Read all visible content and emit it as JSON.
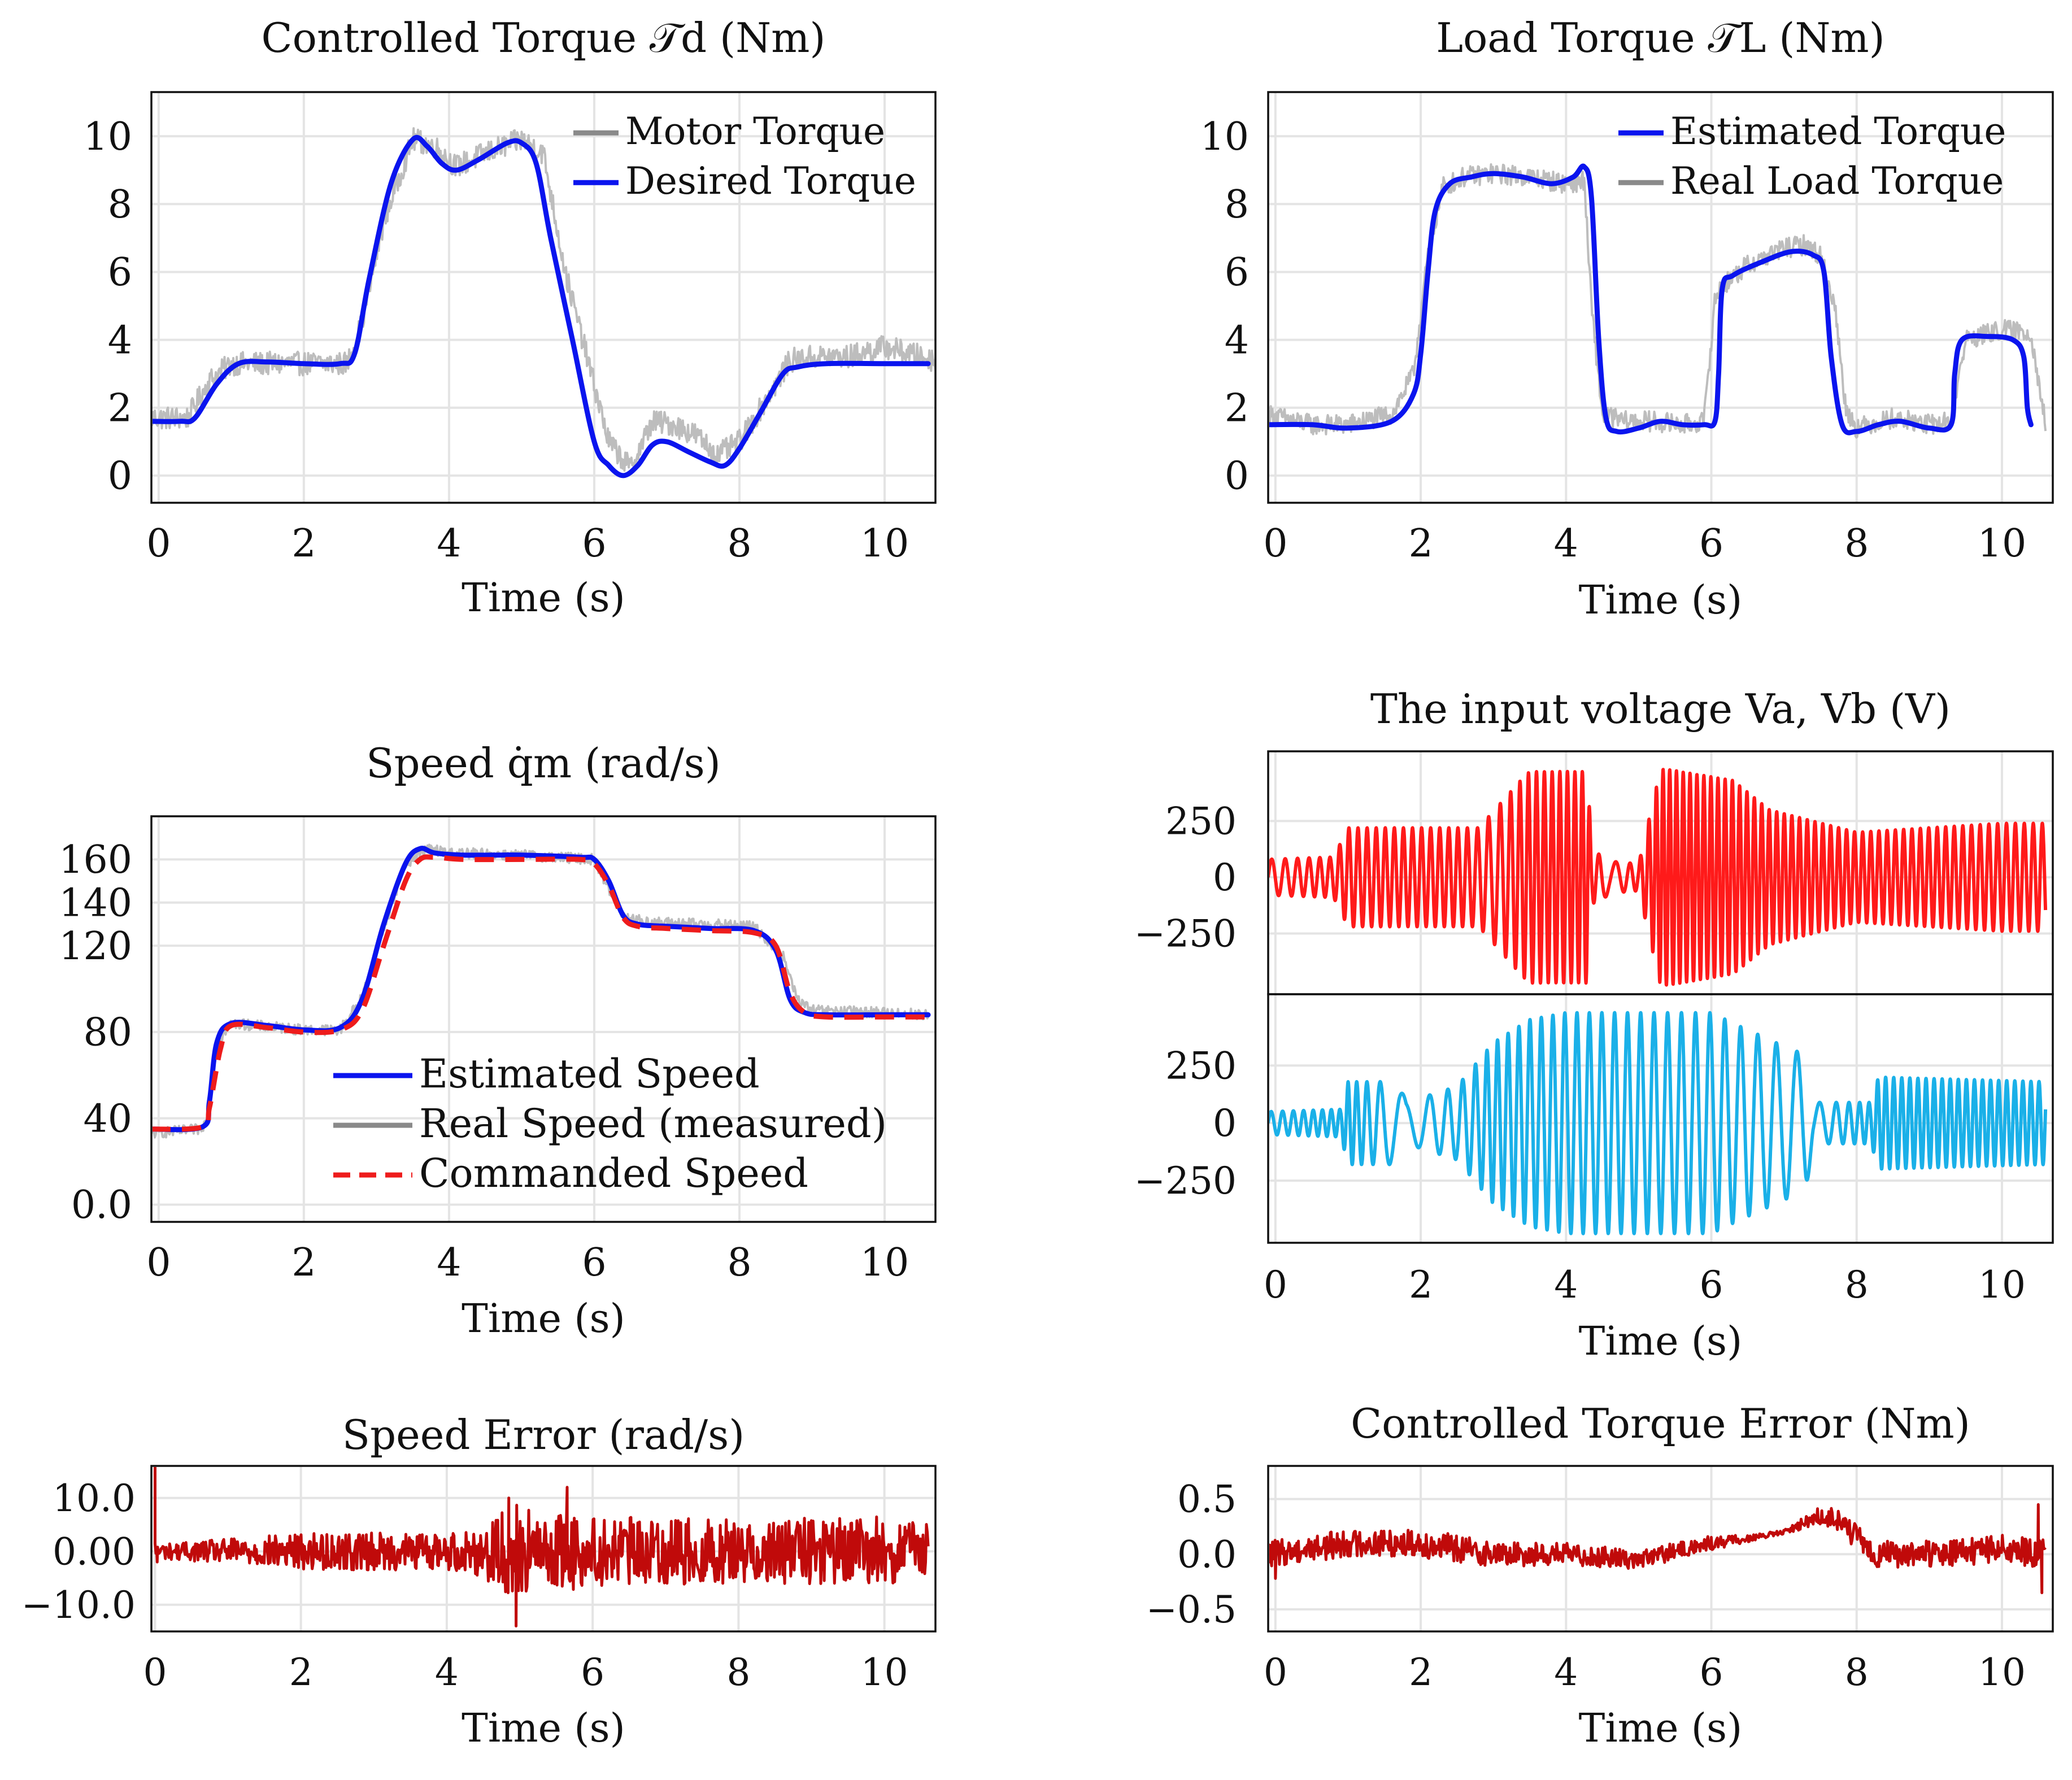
{
  "figure": {
    "colors": {
      "blue": "#0a14ee",
      "gray": "#bdbdbd",
      "gray_legend": "#8a8a8a",
      "red": "#ff1a1a",
      "red_dashed": "#ee1c1c",
      "cyan": "#1ab0e8",
      "dark_red": "#c00a0a",
      "grid": "#e4e4e4",
      "axis": "#111111"
    }
  },
  "chart_data": [
    {
      "id": "controlled-torque",
      "type": "line",
      "title": "Controlled Torque 𝒯d (Nm)",
      "xlabel": "Time (s)",
      "ylabel": "",
      "xlim": [
        -0.1,
        10.7
      ],
      "ylim": [
        -0.8,
        11.3
      ],
      "xticks": [
        0,
        2,
        4,
        6,
        8,
        10
      ],
      "xtick_labels": [
        "0",
        "2",
        "4",
        "6",
        "8",
        "10"
      ],
      "yticks": [
        0,
        2,
        4,
        6,
        8,
        10
      ],
      "ytick_labels": [
        "0",
        "2",
        "4",
        "6",
        "8",
        "10"
      ],
      "grid": true,
      "legend_position": "top-right",
      "series": [
        {
          "name": "Motor Torque",
          "style": "noisy",
          "color": "#bdbdbd",
          "noise": 0.35,
          "x": [
            -0.1,
            0.4,
            0.7,
            1.0,
            1.5,
            2.0,
            2.6,
            2.8,
            3.1,
            3.5,
            3.8,
            4.1,
            4.5,
            5.0,
            5.3,
            5.6,
            5.9,
            6.2,
            6.5,
            6.8,
            7.1,
            7.4,
            7.7,
            8.0,
            8.3,
            8.7,
            9.0,
            9.5,
            10.0,
            10.7
          ],
          "y": [
            1.7,
            1.7,
            2.8,
            3.3,
            3.3,
            3.3,
            3.3,
            4.5,
            7.5,
            9.9,
            9.7,
            9.1,
            9.5,
            9.9,
            9.5,
            6.0,
            3.5,
            1.0,
            0.2,
            1.6,
            1.5,
            1.2,
            0.6,
            1.0,
            2.0,
            3.4,
            3.5,
            3.5,
            3.8,
            3.4
          ]
        },
        {
          "name": "Desired Torque",
          "style": "solid",
          "color": "#0a14ee",
          "x": [
            -0.1,
            0.3,
            0.5,
            0.8,
            1.1,
            1.5,
            2.0,
            2.5,
            2.7,
            2.9,
            3.2,
            3.5,
            3.7,
            3.9,
            4.1,
            4.4,
            4.8,
            5.0,
            5.2,
            5.4,
            5.7,
            6.0,
            6.2,
            6.4,
            6.6,
            6.8,
            7.0,
            7.3,
            7.6,
            7.8,
            8.0,
            8.3,
            8.6,
            8.8,
            9.2,
            10.0,
            10.6
          ],
          "y": [
            1.6,
            1.6,
            1.7,
            2.7,
            3.3,
            3.35,
            3.3,
            3.3,
            3.6,
            5.8,
            8.6,
            9.9,
            9.7,
            9.2,
            9.0,
            9.3,
            9.8,
            9.8,
            9.2,
            7.0,
            4.0,
            1.0,
            0.3,
            0.0,
            0.3,
            0.9,
            1.0,
            0.7,
            0.4,
            0.3,
            0.8,
            1.9,
            3.0,
            3.2,
            3.3,
            3.3,
            3.3
          ]
        }
      ]
    },
    {
      "id": "load-torque",
      "type": "line",
      "title": "Load Torque 𝒯L (Nm)",
      "xlabel": "Time (s)",
      "ylabel": "",
      "xlim": [
        -0.1,
        10.7
      ],
      "ylim": [
        -0.8,
        11.3
      ],
      "xticks": [
        0,
        2,
        4,
        6,
        8,
        10
      ],
      "xtick_labels": [
        "0",
        "2",
        "4",
        "6",
        "8",
        "10"
      ],
      "yticks": [
        0,
        2,
        4,
        6,
        8,
        10
      ],
      "ytick_labels": [
        "0",
        "2",
        "4",
        "6",
        "8",
        "10"
      ],
      "grid": true,
      "legend_position": "top-right",
      "series": [
        {
          "name": "Real Load Torque",
          "style": "noisy",
          "color": "#bdbdbd",
          "noise": 0.3,
          "x": [
            -0.1,
            0.5,
            1.0,
            1.6,
            1.9,
            2.1,
            2.3,
            2.6,
            3.0,
            3.5,
            4.0,
            4.25,
            4.35,
            4.5,
            4.8,
            5.2,
            5.6,
            5.9,
            6.05,
            6.15,
            6.5,
            7.0,
            7.3,
            7.5,
            7.7,
            7.85,
            8.0,
            8.5,
            9.0,
            9.3,
            9.5,
            10.0,
            10.4,
            10.6
          ],
          "y": [
            1.8,
            1.5,
            1.5,
            1.8,
            3.0,
            6.5,
            8.5,
            8.8,
            8.9,
            8.8,
            8.6,
            8.7,
            5.0,
            1.8,
            1.6,
            1.6,
            1.5,
            1.6,
            5.2,
            5.6,
            6.2,
            6.7,
            6.8,
            6.5,
            5.0,
            2.0,
            1.4,
            1.7,
            1.5,
            1.6,
            4.0,
            4.3,
            4.2,
            1.5
          ]
        },
        {
          "name": "Estimated Torque",
          "style": "solid",
          "color": "#0a14ee",
          "x": [
            -0.1,
            0.5,
            1.0,
            1.6,
            1.9,
            2.0,
            2.1,
            2.2,
            2.4,
            2.7,
            3.0,
            3.4,
            3.8,
            4.1,
            4.25,
            4.35,
            4.45,
            4.55,
            4.7,
            5.0,
            5.3,
            5.6,
            5.9,
            6.05,
            6.1,
            6.15,
            6.3,
            6.7,
            7.1,
            7.4,
            7.55,
            7.65,
            7.8,
            8.0,
            8.3,
            8.6,
            9.0,
            9.3,
            9.35,
            9.45,
            9.8,
            10.15,
            10.3,
            10.35,
            10.4
          ],
          "y": [
            1.5,
            1.5,
            1.4,
            1.6,
            2.4,
            3.6,
            6.0,
            7.8,
            8.6,
            8.8,
            8.9,
            8.8,
            8.6,
            8.8,
            9.1,
            8.2,
            4.0,
            1.7,
            1.3,
            1.4,
            1.6,
            1.5,
            1.5,
            1.6,
            3.0,
            5.5,
            5.9,
            6.3,
            6.6,
            6.5,
            6.0,
            3.5,
            1.5,
            1.3,
            1.5,
            1.6,
            1.4,
            1.5,
            3.0,
            4.0,
            4.1,
            4.0,
            3.5,
            2.0,
            1.5
          ]
        }
      ]
    },
    {
      "id": "speed",
      "type": "line",
      "title": "Speed q̇m (rad/s)",
      "xlabel": "Time (s)",
      "ylabel": "",
      "xlim": [
        -0.1,
        10.7
      ],
      "ylim": [
        -8,
        180
      ],
      "xticks": [
        0,
        2,
        4,
        6,
        8,
        10
      ],
      "xtick_labels": [
        "0",
        "2",
        "4",
        "6",
        "8",
        "10"
      ],
      "yticks": [
        0,
        40,
        80,
        120,
        140,
        160
      ],
      "ytick_labels": [
        "0.0",
        "40",
        "80",
        "120",
        "140",
        "160"
      ],
      "grid": true,
      "legend_position": "bottom-center",
      "series": [
        {
          "name": "Real Speed (measured)",
          "style": "noisy",
          "color": "#bdbdbd",
          "noise": 2.5,
          "x": [
            -0.1,
            0.6,
            0.7,
            0.8,
            1.0,
            2.0,
            2.5,
            2.8,
            3.1,
            3.4,
            3.7,
            4.0,
            5.0,
            6.0,
            6.2,
            6.4,
            6.7,
            7.5,
            8.2,
            8.6,
            8.8,
            9.0,
            10.0,
            10.6
          ],
          "y": [
            33,
            35,
            45,
            75,
            84,
            81,
            81,
            96,
            128,
            158,
            165,
            163,
            162,
            160,
            146,
            134,
            131,
            130,
            129,
            115,
            95,
            90,
            89,
            88
          ]
        },
        {
          "name": "Estimated Speed",
          "style": "solid",
          "color": "#0a14ee",
          "x": [
            -0.1,
            0.6,
            0.7,
            0.8,
            1.0,
            1.5,
            2.0,
            2.5,
            2.8,
            3.1,
            3.4,
            3.6,
            3.8,
            4.2,
            5.0,
            5.8,
            6.0,
            6.2,
            6.4,
            6.6,
            7.0,
            7.6,
            8.2,
            8.5,
            8.7,
            8.9,
            9.2,
            10.0,
            10.6
          ],
          "y": [
            35,
            36,
            48,
            75,
            84,
            83,
            81,
            82,
            95,
            130,
            158,
            165,
            163,
            162,
            162,
            161,
            160,
            150,
            134,
            130,
            129,
            128,
            127,
            118,
            95,
            89,
            88,
            88,
            88
          ]
        },
        {
          "name": "Commanded Speed",
          "style": "dashed",
          "color": "#ee1c1c",
          "x": [
            -0.1,
            0.6,
            0.7,
            0.85,
            1.0,
            1.5,
            2.0,
            2.5,
            2.8,
            3.1,
            3.4,
            3.6,
            3.8,
            4.2,
            5.0,
            5.8,
            6.0,
            6.2,
            6.4,
            6.6,
            7.0,
            7.6,
            8.2,
            8.5,
            8.7,
            8.9,
            9.2,
            10.0,
            10.6
          ],
          "y": [
            35,
            36,
            45,
            72,
            83,
            82,
            80,
            81,
            90,
            120,
            150,
            160,
            161,
            160,
            160,
            160,
            158,
            148,
            133,
            129,
            128,
            127,
            126,
            120,
            98,
            89,
            87,
            87,
            87
          ]
        }
      ]
    },
    {
      "id": "input-voltage",
      "type": "line",
      "title": "The input voltage Va, Vb (V)",
      "xlabel": "Time (s)",
      "ylabel": "",
      "xlim": [
        -0.1,
        10.7
      ],
      "xticks": [
        0,
        2,
        4,
        6,
        8,
        10
      ],
      "xtick_labels": [
        "0",
        "2",
        "4",
        "6",
        "8",
        "10"
      ],
      "grid": true,
      "subplots": [
        {
          "name": "Va",
          "ylim": [
            -520,
            560
          ],
          "yticks": [
            250,
            0,
            -250
          ],
          "ytick_labels": [
            "250",
            "0",
            "−250"
          ],
          "color": "#ff1a1a",
          "envelope": {
            "x": [
              -0.1,
              0.8,
              1.0,
              2.0,
              2.8,
              3.4,
              3.5,
              4.3,
              4.35,
              4.65,
              5.0,
              5.3,
              5.4,
              6.3,
              6.8,
              8.0,
              10.0,
              10.6
            ],
            "amp": [
              80,
              90,
              220,
              220,
              220,
              440,
              470,
              470,
              120,
              70,
              60,
              480,
              480,
              430,
              300,
              200,
              240,
              240
            ]
          },
          "frequency": {
            "x": [
              -0.1,
              1.0,
              2.5,
              3.0,
              3.5,
              4.3,
              4.6,
              5.3,
              6.3,
              8.0,
              10.6
            ],
            "hz": [
              5,
              8,
              8,
              6,
              9,
              10,
              3,
              11,
              10,
              9,
              8
            ]
          }
        },
        {
          "name": "Vb",
          "ylim": [
            -520,
            560
          ],
          "yticks": [
            250,
            0,
            -250
          ],
          "ytick_labels": [
            "250",
            "0",
            "−250"
          ],
          "color": "#1ab0e8",
          "envelope": {
            "x": [
              -0.1,
              0.9,
              1.0,
              1.7,
              1.8,
              2.5,
              3.0,
              3.5,
              4.0,
              5.0,
              6.0,
              6.4,
              7.1,
              7.3,
              7.4,
              8.2,
              8.3,
              10.6
            ],
            "amp": [
              50,
              60,
              180,
              180,
              90,
              160,
              350,
              450,
              480,
              480,
              480,
              420,
              320,
              300,
              90,
              90,
              200,
              180
            ]
          },
          "frequency": {
            "x": [
              -0.1,
              1.0,
              1.7,
              2.0,
              3.0,
              4.0,
              6.0,
              7.4,
              8.3,
              10.6
            ],
            "hz": [
              6,
              9,
              2,
              3,
              7,
              6,
              5,
              3,
              9,
              9
            ]
          }
        }
      ]
    },
    {
      "id": "speed-error",
      "type": "line",
      "title": "Speed Error (rad/s)",
      "xlabel": "Time (s)",
      "ylabel": "",
      "xlim": [
        -0.05,
        10.7
      ],
      "ylim": [
        -15,
        16
      ],
      "xticks": [
        0,
        2,
        4,
        6,
        8,
        10
      ],
      "xtick_labels": [
        "0",
        "2",
        "4",
        "6",
        "8",
        "10"
      ],
      "yticks": [
        10,
        0,
        -10
      ],
      "ytick_labels": [
        "10.0",
        "0.00",
        "−10.0"
      ],
      "grid": true,
      "series": [
        {
          "name": "Speed Error",
          "style": "noisy",
          "color": "#c00a0a",
          "noise_x": [
            0,
            0.2,
            2.0,
            4.0,
            4.5,
            5.0,
            5.3,
            5.6,
            6.0,
            8.0,
            10.0,
            10.6
          ],
          "noise_amp": [
            2.0,
            1.5,
            3.5,
            3.5,
            5.0,
            10.0,
            5.0,
            7.5,
            6.5,
            6.0,
            6.5,
            5.0
          ],
          "spikes": [
            {
              "x": 0.0,
              "y": 16.0
            },
            {
              "x": 0.03,
              "y": -2.0
            },
            {
              "x": 4.95,
              "y": -14.0
            },
            {
              "x": 4.85,
              "y": 10.0
            },
            {
              "x": 5.65,
              "y": 12.0
            }
          ],
          "x": [
            0,
            10.6
          ],
          "y": [
            0,
            0
          ]
        }
      ]
    },
    {
      "id": "controlled-torque-error",
      "type": "line",
      "title": "Controlled Torque Error (Nm)",
      "xlabel": "Time (s)",
      "ylabel": "",
      "xlim": [
        -0.1,
        10.7
      ],
      "ylim": [
        -0.7,
        0.8
      ],
      "xticks": [
        0,
        2,
        4,
        6,
        8,
        10
      ],
      "xtick_labels": [
        "0",
        "2",
        "4",
        "6",
        "8",
        "10"
      ],
      "yticks": [
        0.5,
        0,
        -0.5
      ],
      "ytick_labels": [
        "0.5",
        "0.0",
        "−0.5"
      ],
      "grid": true,
      "series": [
        {
          "name": "Controlled Torque Error",
          "style": "noisy",
          "color": "#c00a0a",
          "noise_x": [
            -0.1,
            2.0,
            4.0,
            6.0,
            6.5,
            7.0,
            7.5,
            8.0,
            9.0,
            10.6
          ],
          "noise_amp": [
            0.12,
            0.13,
            0.1,
            0.07,
            0.03,
            0.02,
            0.08,
            0.12,
            0.12,
            0.13
          ],
          "spikes": [
            {
              "x": 10.5,
              "y": 0.45
            },
            {
              "x": 10.55,
              "y": -0.35
            },
            {
              "x": 0.0,
              "y": -0.22
            }
          ],
          "x": [
            -0.1,
            1.0,
            2.0,
            3.0,
            4.0,
            5.0,
            6.0,
            6.6,
            7.0,
            7.5,
            7.8,
            8.2,
            9.0,
            10.0,
            10.6
          ],
          "y": [
            0.0,
            0.1,
            0.1,
            0.0,
            0.0,
            -0.05,
            0.1,
            0.15,
            0.2,
            0.35,
            0.3,
            0.0,
            0.0,
            0.05,
            0.0
          ]
        }
      ]
    }
  ]
}
